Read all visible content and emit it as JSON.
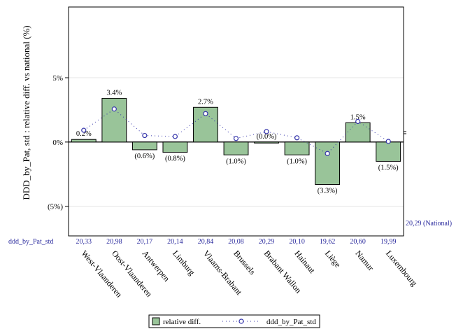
{
  "chart_data": {
    "type": "bar",
    "ylabel": "DDD_by_Pat, std : relative diff. vs national (%)",
    "yticks": [
      {
        "value": 5,
        "label": "5%"
      },
      {
        "value": 0,
        "label": "0%"
      },
      {
        "value": -5,
        "label": "(5%)"
      }
    ],
    "categories": [
      "West-Vlaanderen",
      "Oost-Vlaanderen",
      "Antwerpen",
      "Limburg",
      "Vlaams-Brabant",
      "Brussels",
      "Brabant Wallon",
      "Hainaut",
      "Liège",
      "Namur",
      "Luxembourg"
    ],
    "series": [
      {
        "name": "relative diff.",
        "type": "bar",
        "color": "#99c499",
        "values": [
          0.2,
          3.4,
          -0.6,
          -0.8,
          2.7,
          -1.0,
          -0.0,
          -1.0,
          -3.3,
          1.5,
          -1.5
        ],
        "labels": [
          "0.2%",
          "3.4%",
          "(0.6%)",
          "(0.8%)",
          "2.7%",
          "(1.0%)",
          "(0.0%)",
          "(1.0%)",
          "(3.3%)",
          "1.5%",
          "(1.5%)"
        ]
      },
      {
        "name": "ddd_by_Pat_std",
        "type": "line",
        "color": "#3333aa",
        "values": [
          20.33,
          20.98,
          20.17,
          20.14,
          20.84,
          20.08,
          20.29,
          20.1,
          19.62,
          20.6,
          19.99
        ],
        "labels": [
          "20,33",
          "20,98",
          "20,17",
          "20,14",
          "20,84",
          "20,08",
          "20,29",
          "20,10",
          "19,62",
          "20,60",
          "19,99"
        ]
      }
    ],
    "row_label": "ddd_by_Pat_std",
    "national_label": "20,29 (National)",
    "national_value": 20.29,
    "ylim": [
      -7.3,
      10.5
    ],
    "y2lim": [
      17.1,
      24.1
    ],
    "legend_placement": "bottom",
    "grid": true
  }
}
